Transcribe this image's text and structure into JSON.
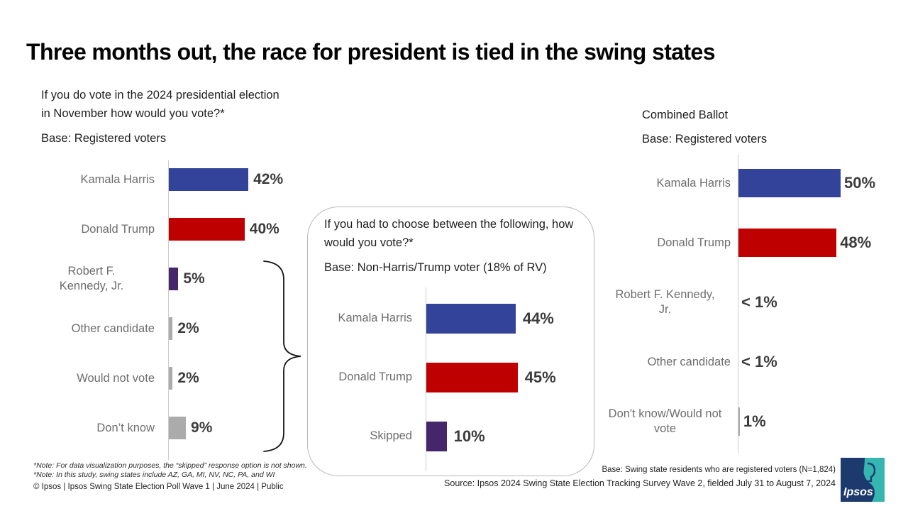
{
  "title": "Three months out, the race for president is tied in the swing states",
  "colors": {
    "harris_blue": "#33439A",
    "trump_red": "#BE0000",
    "purple": "#45266B",
    "gray_bar": "#ABABAB",
    "axis_gray": "#CCCCCC",
    "logo_navy": "#1D3A6E",
    "logo_teal": "#35B6B0"
  },
  "chart_data": [
    {
      "id": "initial-ballot",
      "type": "bar",
      "orientation": "horizontal",
      "question": "If you do vote in the 2024 presidential election in November how would you vote?*",
      "base": "Base: Registered voters",
      "categories": [
        "Kamala Harris",
        "Donald Trump",
        "Robert F. Kennedy, Jr.",
        "Other candidate",
        "Would not vote",
        "Don’t know"
      ],
      "values": [
        42,
        40,
        5,
        2,
        2,
        9
      ],
      "value_labels": [
        "42%",
        "40%",
        "5%",
        "2%",
        "2%",
        "9%"
      ],
      "bar_colors": [
        "#33439A",
        "#BE0000",
        "#45266B",
        "#ABABAB",
        "#ABABAB",
        "#ABABAB"
      ],
      "xlim": [
        0,
        50
      ],
      "grid": false,
      "legend": "none"
    },
    {
      "id": "forced-choice",
      "type": "bar",
      "orientation": "horizontal",
      "question": "If you had to choose between the following, how would you vote?*",
      "base": "Base: Non-Harris/Trump voter (18% of RV)",
      "categories": [
        "Kamala Harris",
        "Donald Trump",
        "Skipped"
      ],
      "values": [
        44,
        45,
        10
      ],
      "value_labels": [
        "44%",
        "45%",
        "10%"
      ],
      "bar_colors": [
        "#33439A",
        "#BE0000",
        "#45266B"
      ],
      "xlim": [
        0,
        50
      ],
      "grid": false,
      "legend": "none"
    },
    {
      "id": "combined-ballot",
      "type": "bar",
      "orientation": "horizontal",
      "question": "Combined Ballot",
      "base": "Base: Registered voters",
      "categories": [
        "Kamala Harris",
        "Donald Trump",
        "Robert F. Kennedy, Jr.",
        "Other candidate",
        "Don't know/Would not vote"
      ],
      "values": [
        50,
        48,
        0,
        0,
        1
      ],
      "value_labels": [
        "50%",
        "48%",
        "< 1%",
        "< 1%",
        "1%"
      ],
      "bar_colors": [
        "#33439A",
        "#BE0000",
        "#45266B",
        "#ABABAB",
        "#ABABAB"
      ],
      "xlim": [
        0,
        55
      ],
      "grid": false,
      "legend": "none"
    }
  ],
  "footnotes": {
    "note1": "*Note: For data visualization purposes, the “skipped” response option is not shown.",
    "note2": "*Note: In this study, swing states include  AZ, GA, MI, NV, NC, PA, and WI",
    "copyright": "© Ipsos | Ipsos Swing State Election Poll Wave 1 | June 2024 | Public",
    "base_right": "Base: Swing state residents  who are registered  voters (N=1,824)",
    "source": "Source: Ipsos 2024 Swing State Election Tracking Survey Wave 2, fielded July 31 to August 7, 2024"
  },
  "logo": {
    "brand": "Ipsos"
  }
}
